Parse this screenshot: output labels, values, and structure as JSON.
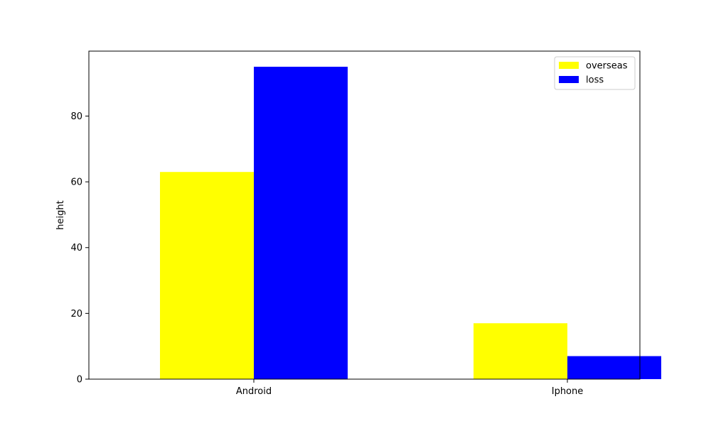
{
  "chart_data": {
    "type": "bar",
    "title": "",
    "xlabel": "",
    "ylabel": "height",
    "categories": [
      "Android",
      "Iphone"
    ],
    "series": [
      {
        "name": "overseas",
        "color": "#ffff00",
        "values": [
          63,
          17
        ]
      },
      {
        "name": "loss",
        "color": "#0000ff",
        "values": [
          95,
          7
        ]
      }
    ],
    "ylim": [
      0,
      99.75
    ],
    "yticks": [
      0,
      20,
      40,
      60,
      80
    ],
    "legend": "top-right",
    "grid": false
  }
}
